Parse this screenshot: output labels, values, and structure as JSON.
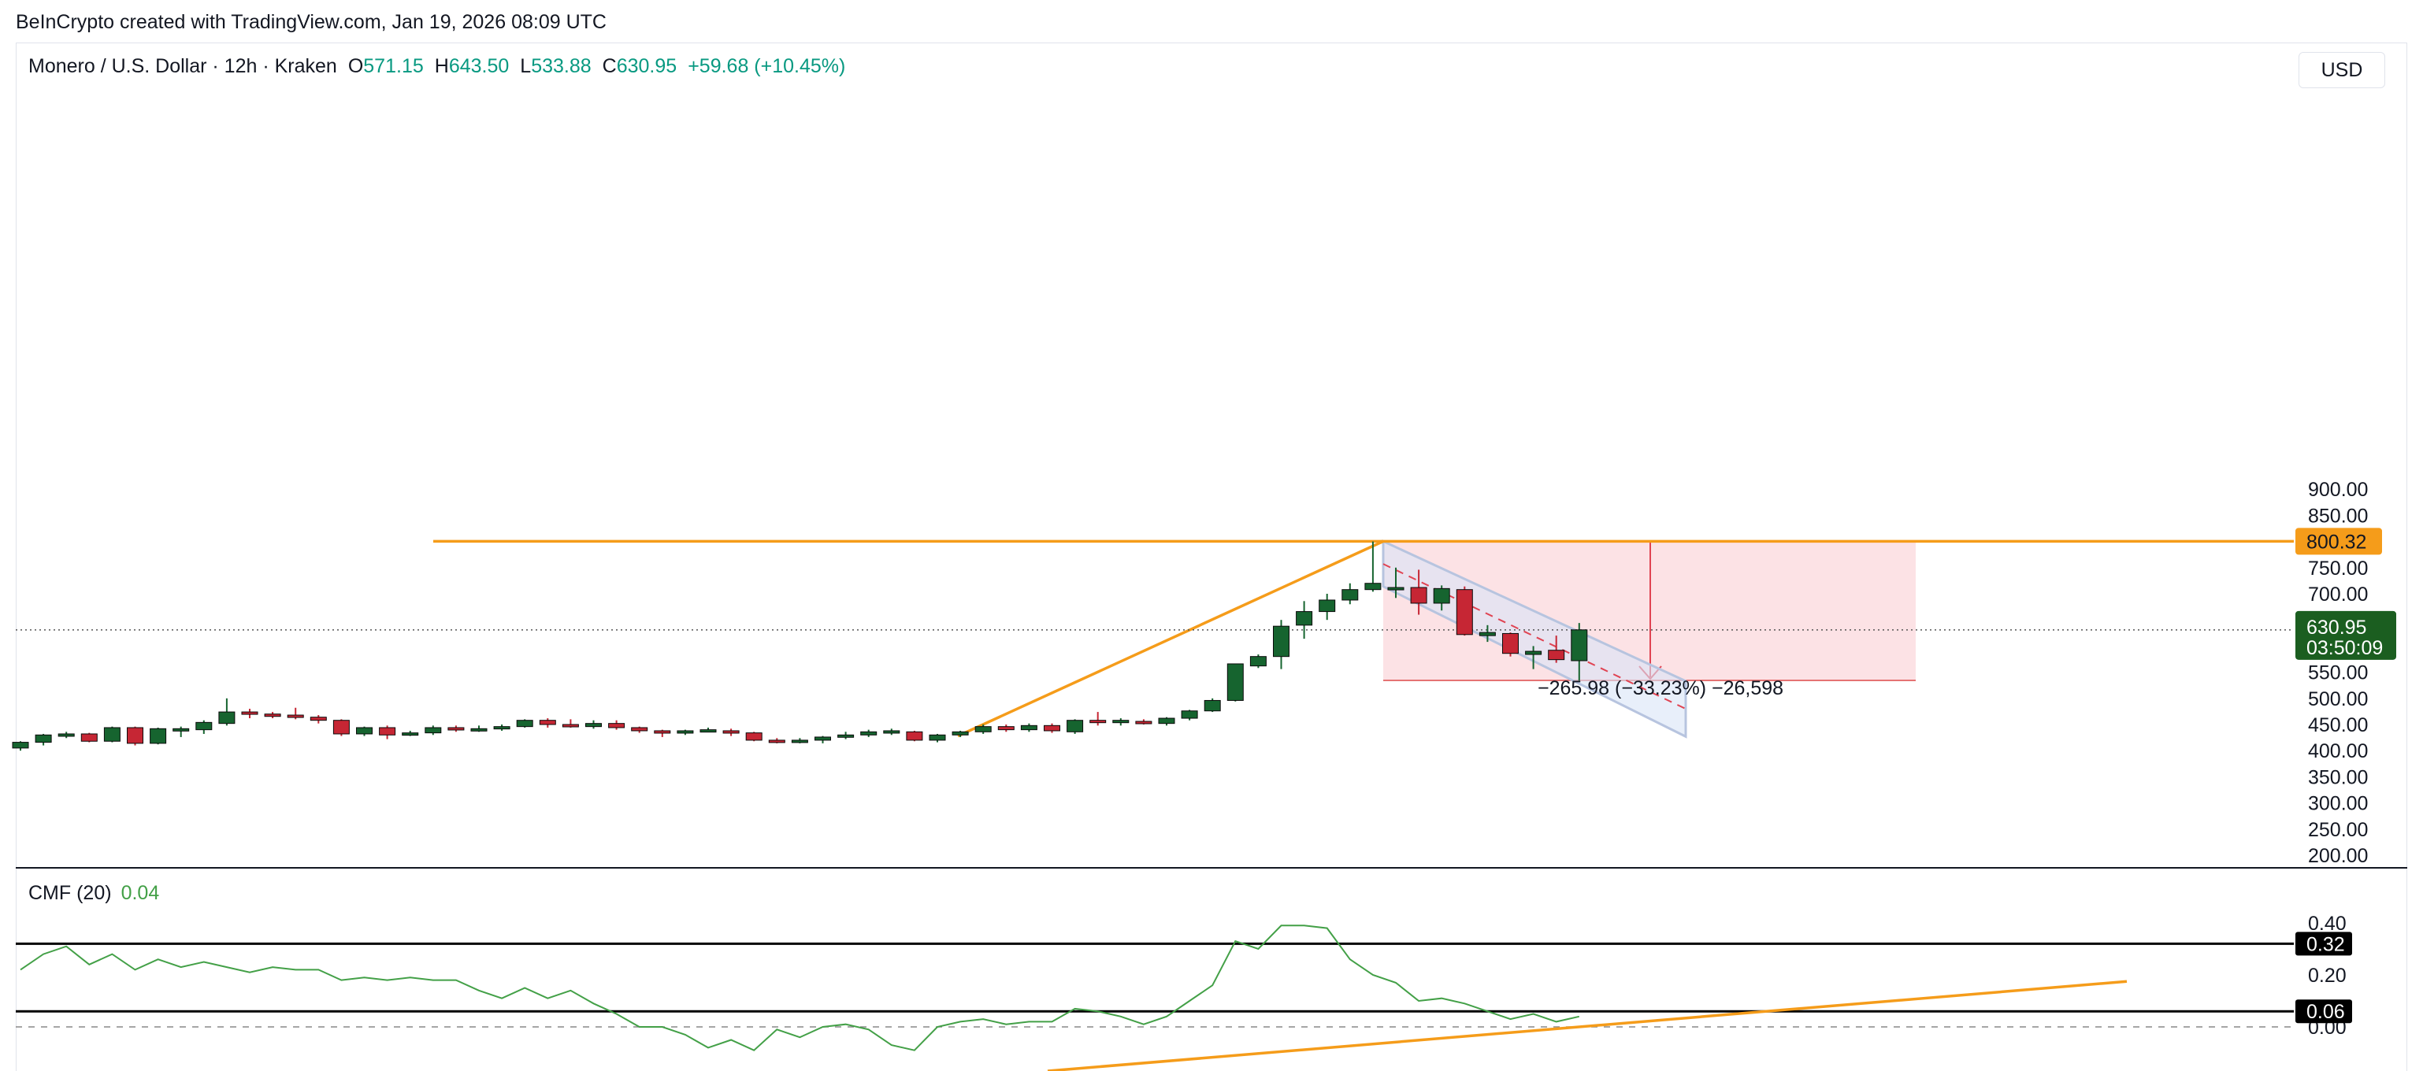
{
  "header": {
    "credit": "BeInCrypto created with TradingView.com, Jan 19, 2026 08:09 UTC"
  },
  "legend": {
    "symbol": "Monero / U.S. Dollar · 12h · Kraken",
    "open_label": "O",
    "open": "571.15",
    "high_label": "H",
    "high": "643.50",
    "low_label": "L",
    "low": "533.88",
    "close_label": "C",
    "close": "630.95",
    "change": "+59.68 (+10.45%)"
  },
  "currency": "USD",
  "price_tags": {
    "level": "800.32",
    "last": "630.95",
    "countdown": "03:50:09"
  },
  "measure_label": "−265.98 (−33.23%) −26,598",
  "indicator": {
    "name": "CMF (20)",
    "value": "0.04",
    "tag_upper": "0.32",
    "tag_lower": "0.06",
    "ticks": [
      "0.40",
      "0.20",
      "0.00"
    ]
  },
  "colors": {
    "up": "#16642f",
    "down": "#c62634",
    "orange": "#f59c1a",
    "zone": "#fcdde1",
    "channel": "#d9e4f7",
    "cmf_line": "#43a047",
    "last_tag": "#1b5e20"
  },
  "chart_data": [
    {
      "type": "candlestick",
      "title": "Monero / U.S. Dollar · 12h · Kraken",
      "ylim": [
        200,
        900
      ],
      "y_ticks": [
        900,
        850,
        800,
        750,
        700,
        650,
        600,
        550,
        500,
        450,
        400,
        350,
        300,
        250,
        200
      ],
      "candles": [
        [
          405,
          418,
          400,
          416
        ],
        [
          416,
          432,
          410,
          430
        ],
        [
          430,
          436,
          424,
          432
        ],
        [
          432,
          434,
          416,
          418
        ],
        [
          418,
          446,
          416,
          444
        ],
        [
          444,
          446,
          410,
          414
        ],
        [
          414,
          444,
          412,
          442
        ],
        [
          440,
          446,
          426,
          442
        ],
        [
          440,
          458,
          432,
          454
        ],
        [
          452,
          500,
          448,
          474
        ],
        [
          474,
          480,
          462,
          470
        ],
        [
          470,
          474,
          462,
          468
        ],
        [
          468,
          482,
          460,
          464
        ],
        [
          464,
          468,
          452,
          458
        ],
        [
          458,
          460,
          428,
          432
        ],
        [
          432,
          446,
          428,
          444
        ],
        [
          444,
          448,
          422,
          430
        ],
        [
          430,
          438,
          428,
          434
        ],
        [
          434,
          448,
          430,
          444
        ],
        [
          444,
          448,
          436,
          440
        ],
        [
          440,
          448,
          436,
          442
        ],
        [
          442,
          450,
          438,
          446
        ],
        [
          446,
          460,
          444,
          458
        ],
        [
          458,
          462,
          444,
          450
        ],
        [
          450,
          460,
          444,
          446
        ],
        [
          446,
          458,
          442,
          452
        ],
        [
          452,
          458,
          440,
          444
        ],
        [
          444,
          446,
          434,
          438
        ],
        [
          438,
          440,
          426,
          434
        ],
        [
          434,
          440,
          430,
          438
        ],
        [
          440,
          444,
          436,
          440
        ],
        [
          438,
          442,
          428,
          434
        ],
        [
          434,
          436,
          418,
          420
        ],
        [
          420,
          424,
          414,
          418
        ],
        [
          418,
          424,
          414,
          420
        ],
        [
          420,
          428,
          414,
          426
        ],
        [
          426,
          436,
          422,
          430
        ],
        [
          430,
          440,
          426,
          436
        ],
        [
          436,
          442,
          430,
          438
        ],
        [
          436,
          438,
          418,
          420
        ],
        [
          420,
          432,
          416,
          430
        ],
        [
          430,
          438,
          426,
          436
        ],
        [
          436,
          450,
          432,
          446
        ],
        [
          446,
          450,
          436,
          440
        ],
        [
          440,
          452,
          436,
          448
        ],
        [
          448,
          452,
          434,
          438
        ],
        [
          436,
          460,
          432,
          458
        ],
        [
          458,
          474,
          448,
          454
        ],
        [
          454,
          462,
          448,
          458
        ],
        [
          456,
          460,
          450,
          454
        ],
        [
          452,
          464,
          448,
          462
        ],
        [
          462,
          478,
          458,
          476
        ],
        [
          476,
          500,
          474,
          496
        ],
        [
          496,
          566,
          494,
          566
        ],
        [
          562,
          584,
          558,
          580
        ],
        [
          580,
          650,
          556,
          638
        ],
        [
          640,
          686,
          614,
          666
        ],
        [
          666,
          700,
          650,
          688
        ],
        [
          688,
          720,
          680,
          708
        ],
        [
          708,
          800,
          704,
          720
        ],
        [
          712,
          750,
          692,
          712
        ],
        [
          712,
          746,
          660,
          682
        ],
        [
          682,
          716,
          668,
          710
        ],
        [
          708,
          714,
          620,
          622
        ],
        [
          620,
          640,
          608,
          626
        ],
        [
          624,
          626,
          580,
          586
        ],
        [
          584,
          600,
          556,
          590
        ],
        [
          592,
          620,
          568,
          574
        ],
        [
          572,
          644,
          534,
          631
        ]
      ],
      "levels": [
        800.32,
        630.95
      ]
    },
    {
      "type": "line",
      "title": "CMF (20)",
      "ylim": [
        -0.1,
        0.4
      ],
      "series": [
        {
          "name": "CMF (20)",
          "values": [
            0.22,
            0.28,
            0.31,
            0.24,
            0.28,
            0.22,
            0.26,
            0.23,
            0.25,
            0.23,
            0.21,
            0.23,
            0.22,
            0.22,
            0.18,
            0.19,
            0.18,
            0.19,
            0.18,
            0.18,
            0.14,
            0.11,
            0.15,
            0.11,
            0.14,
            0.09,
            0.05,
            0.0,
            0.0,
            -0.03,
            -0.08,
            -0.05,
            -0.09,
            -0.01,
            -0.04,
            0.0,
            0.01,
            -0.01,
            -0.07,
            -0.09,
            0.0,
            0.02,
            0.03,
            0.01,
            0.02,
            0.02,
            0.07,
            0.06,
            0.04,
            0.01,
            0.04,
            0.1,
            0.16,
            0.33,
            0.3,
            0.39,
            0.39,
            0.38,
            0.26,
            0.2,
            0.17,
            0.1,
            0.11,
            0.09,
            0.06,
            0.03,
            0.05,
            0.02,
            0.04
          ]
        }
      ],
      "y_ticks": [
        0.4,
        0.2,
        0.0
      ],
      "levels": [
        0.32,
        0.06,
        0.0
      ]
    }
  ]
}
